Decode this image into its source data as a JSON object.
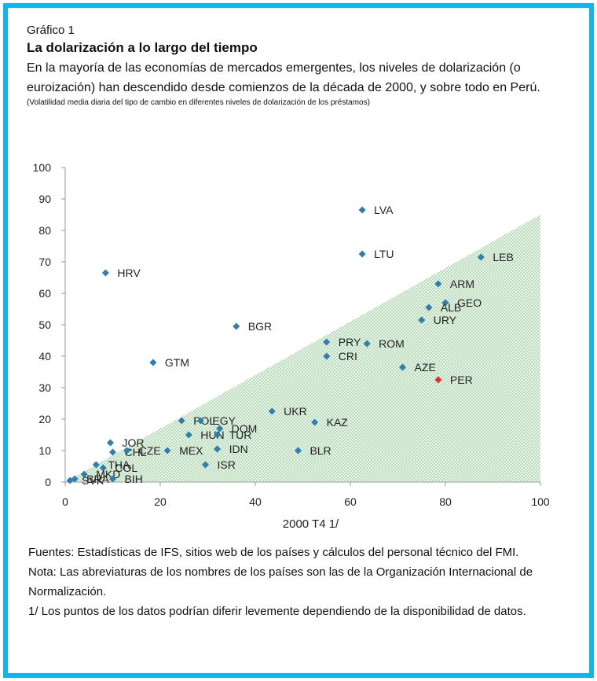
{
  "header": {
    "label": "Gráfico 1",
    "title": "La dolarización a lo largo del tiempo",
    "subtitle": "En la mayoría de las economías de mercados emergentes, los niveles de dolarización (o euroización) han descendido desde comienzos de la década de 2000, y sobre todo en Perú.",
    "note": "(Volatilidad media diaria del tipo de cambio en diferentes niveles de dolarización de los préstamos)"
  },
  "footer": {
    "sources": "Fuentes: Estadísticas de IFS, sitios web de los países y cálculos del personal técnico del FMI.",
    "note": "Nota: Las abreviaturas de los nombres de los países son las de la Organización Internacional de Normalización.",
    "footnote": "1/ Los puntos de los datos podrían diferir levemente dependiendo de la disponibilidad de datos."
  },
  "chart_data": {
    "type": "scatter",
    "xlabel": "2000 T4 1/",
    "ylabel": "",
    "xlim": [
      0,
      100
    ],
    "ylim": [
      0,
      100
    ],
    "xticks": [
      0,
      20,
      40,
      60,
      80,
      100
    ],
    "yticks": [
      0,
      10,
      20,
      30,
      40,
      50,
      60,
      70,
      80,
      90,
      100
    ],
    "grid": false,
    "shaded_region": {
      "description": "triangle below diagonal",
      "vertices": [
        [
          0,
          0
        ],
        [
          100,
          0
        ],
        [
          100,
          85
        ]
      ],
      "color": "#cfe8cf"
    },
    "colors": {
      "point": "#2e7fb0",
      "highlight": "#e0302a",
      "axis": "#9a9a9a"
    },
    "points": [
      {
        "label": "LVA",
        "x": 62.5,
        "y": 86.5
      },
      {
        "label": "LTU",
        "x": 62.5,
        "y": 72.5
      },
      {
        "label": "LEB",
        "x": 87.5,
        "y": 71.5
      },
      {
        "label": "HRV",
        "x": 8.5,
        "y": 66.5
      },
      {
        "label": "ARM",
        "x": 78.5,
        "y": 63
      },
      {
        "label": "GEO",
        "x": 80,
        "y": 57
      },
      {
        "label": "ALB",
        "x": 76.5,
        "y": 55.5
      },
      {
        "label": "URY",
        "x": 75,
        "y": 51.5
      },
      {
        "label": "BGR",
        "x": 36,
        "y": 49.5
      },
      {
        "label": "PRY",
        "x": 55,
        "y": 44.5
      },
      {
        "label": "ROM",
        "x": 63.5,
        "y": 44
      },
      {
        "label": "CRI",
        "x": 55,
        "y": 40
      },
      {
        "label": "GTM",
        "x": 18.5,
        "y": 38
      },
      {
        "label": "AZE",
        "x": 71,
        "y": 36.5
      },
      {
        "label": "PER",
        "x": 78.5,
        "y": 32.5,
        "highlight": true
      },
      {
        "label": "UKR",
        "x": 43.5,
        "y": 22.5
      },
      {
        "label": "KAZ",
        "x": 52.5,
        "y": 19
      },
      {
        "label": "POL",
        "x": 24.5,
        "y": 19.5
      },
      {
        "label": "EGY",
        "x": 28.5,
        "y": 19.5
      },
      {
        "label": "DOM",
        "x": 32.5,
        "y": 17
      },
      {
        "label": "HUN",
        "x": 26,
        "y": 15
      },
      {
        "label": "TUR",
        "x": 32,
        "y": 15
      },
      {
        "label": "JOR",
        "x": 9.5,
        "y": 12.5
      },
      {
        "label": "MEX",
        "x": 21.5,
        "y": 10
      },
      {
        "label": "CHL",
        "x": 10,
        "y": 9.5
      },
      {
        "label": "CZE",
        "x": 13,
        "y": 10
      },
      {
        "label": "IDN",
        "x": 32,
        "y": 10.5
      },
      {
        "label": "BLR",
        "x": 49,
        "y": 10
      },
      {
        "label": "THA",
        "x": 6.5,
        "y": 5.5
      },
      {
        "label": "COL",
        "x": 8,
        "y": 4.5
      },
      {
        "label": "ISR",
        "x": 29.5,
        "y": 5.5
      },
      {
        "label": "MKD",
        "x": 4,
        "y": 2.5
      },
      {
        "label": "BIH",
        "x": 10,
        "y": 1
      },
      {
        "label": "BRA",
        "x": 2,
        "y": 1
      },
      {
        "label": "SVK",
        "x": 1,
        "y": 0.5
      }
    ]
  }
}
